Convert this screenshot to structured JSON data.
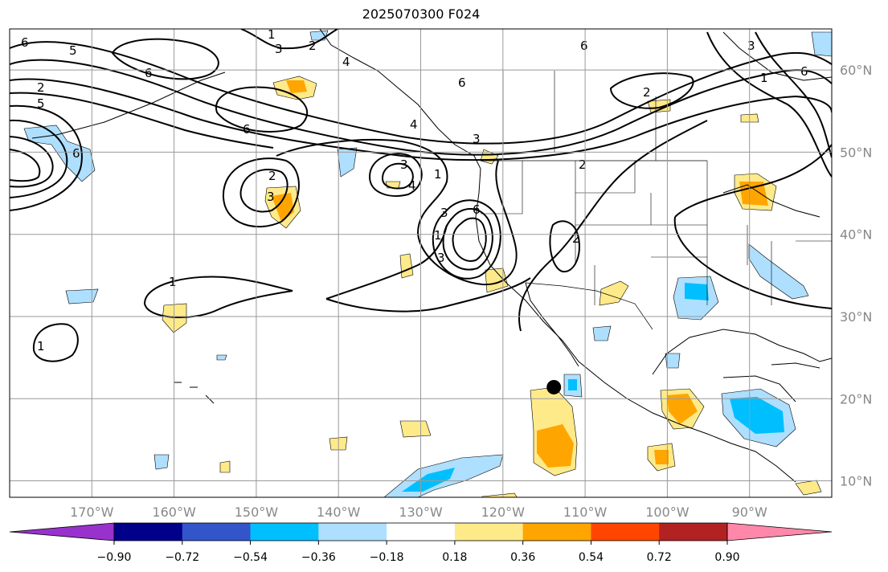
{
  "title": "2025070300 F024",
  "map": {
    "lon_range": [
      -180,
      -80
    ],
    "lat_range": [
      8,
      65
    ],
    "lon_ticks": [
      {
        "value": -170,
        "label": "170°W"
      },
      {
        "value": -160,
        "label": "160°W"
      },
      {
        "value": -150,
        "label": "150°W"
      },
      {
        "value": -140,
        "label": "140°W"
      },
      {
        "value": -130,
        "label": "130°W"
      },
      {
        "value": -120,
        "label": "120°W"
      },
      {
        "value": -110,
        "label": "110°W"
      },
      {
        "value": -100,
        "label": "100°W"
      },
      {
        "value": -90,
        "label": "90°W"
      }
    ],
    "lat_ticks": [
      {
        "value": 10,
        "label": "10°N"
      },
      {
        "value": 20,
        "label": "20°N"
      },
      {
        "value": 30,
        "label": "30°N"
      },
      {
        "value": 40,
        "label": "40°N"
      },
      {
        "value": 50,
        "label": "50°N"
      },
      {
        "value": 60,
        "label": "60°N"
      }
    ],
    "gridlines": true,
    "marker": {
      "lon": -113.8,
      "lat": 21.4
    }
  },
  "colorbar": {
    "colors": [
      "#9932CC",
      "#00008B",
      "#3355CC",
      "#00BFFF",
      "#AEDFFF",
      "#FFFFFF",
      "#FFEA8A",
      "#FFA500",
      "#FF4500",
      "#B22222",
      "#FF88AA"
    ],
    "tick_values": [
      -0.9,
      -0.72,
      -0.54,
      -0.36,
      -0.18,
      0.18,
      0.36,
      0.54,
      0.72,
      0.9
    ],
    "tick_labels": [
      "−0.90",
      "−0.72",
      "−0.54",
      "−0.36",
      "−0.18",
      "0.18",
      "0.36",
      "0.54",
      "0.72",
      "0.90"
    ],
    "extend": "both"
  },
  "contour_labels": [
    "1",
    "2",
    "3",
    "4",
    "5",
    "6"
  ]
}
